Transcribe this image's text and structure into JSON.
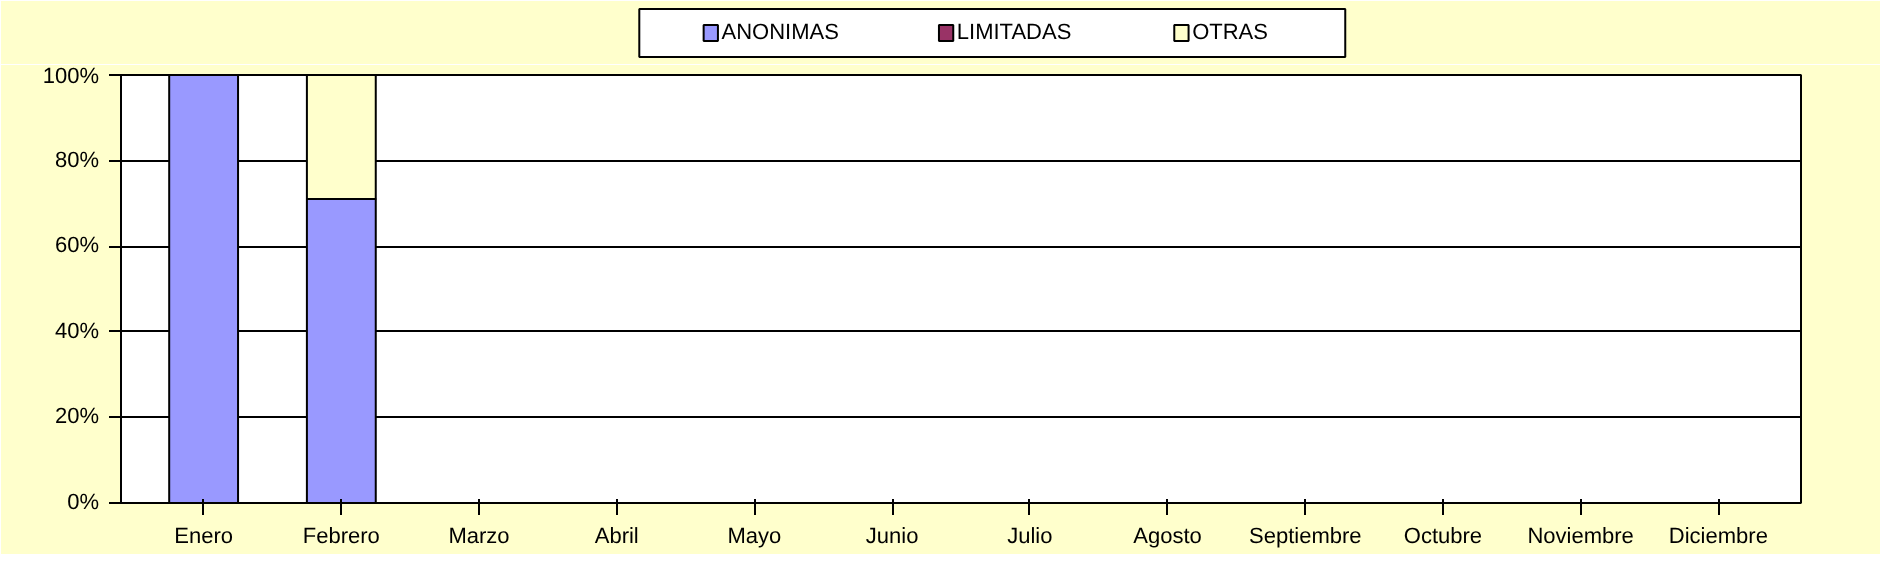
{
  "chart_data": {
    "type": "bar",
    "stacked": true,
    "categories": [
      "Enero",
      "Febrero",
      "Marzo",
      "Abril",
      "Mayo",
      "Junio",
      "Julio",
      "Agosto",
      "Septiembre",
      "Octubre",
      "Noviembre",
      "Diciembre"
    ],
    "series": [
      {
        "name": "ANONIMAS",
        "color": "#9999ff",
        "values": [
          100,
          71,
          0,
          0,
          0,
          0,
          0,
          0,
          0,
          0,
          0,
          0
        ]
      },
      {
        "name": "LIMITADAS",
        "color": "#993366",
        "values": [
          0,
          0,
          0,
          0,
          0,
          0,
          0,
          0,
          0,
          0,
          0,
          0
        ]
      },
      {
        "name": "OTRAS",
        "color": "#ffffcc",
        "values": [
          0,
          29,
          0,
          0,
          0,
          0,
          0,
          0,
          0,
          0,
          0,
          0
        ]
      }
    ],
    "ylim": [
      0,
      100
    ],
    "yticks": [
      {
        "value": 0,
        "label": "0%"
      },
      {
        "value": 20,
        "label": "20%"
      },
      {
        "value": 40,
        "label": "40%"
      },
      {
        "value": 60,
        "label": "60%"
      },
      {
        "value": 80,
        "label": "80%"
      },
      {
        "value": 100,
        "label": "100%"
      }
    ],
    "grid": "y",
    "legend": "top"
  }
}
